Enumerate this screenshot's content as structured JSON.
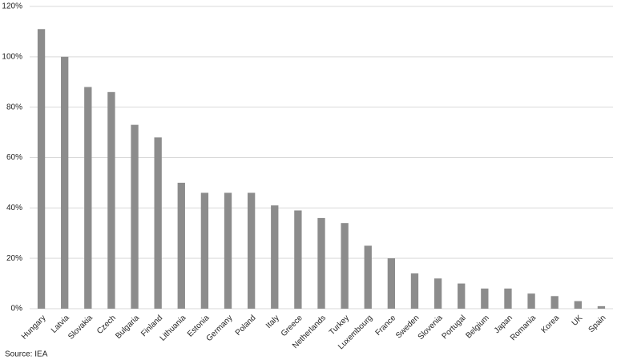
{
  "chart_data": {
    "type": "bar",
    "categories": [
      "Hungary",
      "Latvia",
      "Slovakia",
      "Czech",
      "Bulgaria",
      "Finland",
      "Lithuania",
      "Estonia",
      "Germany",
      "Poland",
      "Italy",
      "Greece",
      "Netherlands",
      "Turkey",
      "Luxembourg",
      "France",
      "Sweden",
      "Slovenia",
      "Portugal",
      "Belgium",
      "Japan",
      "Romania",
      "Korea",
      "UK",
      "Spain"
    ],
    "values": [
      111,
      100,
      88,
      86,
      73,
      68,
      50,
      46,
      46,
      46,
      41,
      39,
      36,
      34,
      25,
      20,
      14,
      12,
      10,
      8,
      8,
      6,
      5,
      3,
      1
    ],
    "color": "#8c8c8c",
    "ylim": [
      0,
      120
    ],
    "yticks": [
      {
        "value": 0,
        "label": "0%"
      },
      {
        "value": 20,
        "label": "20%"
      },
      {
        "value": 40,
        "label": "40%"
      },
      {
        "value": 60,
        "label": "60%"
      },
      {
        "value": 80,
        "label": "80%"
      },
      {
        "value": 100,
        "label": "100%"
      },
      {
        "value": 120,
        "label": "120%"
      }
    ],
    "grid": true,
    "source": "Source: IEA"
  }
}
